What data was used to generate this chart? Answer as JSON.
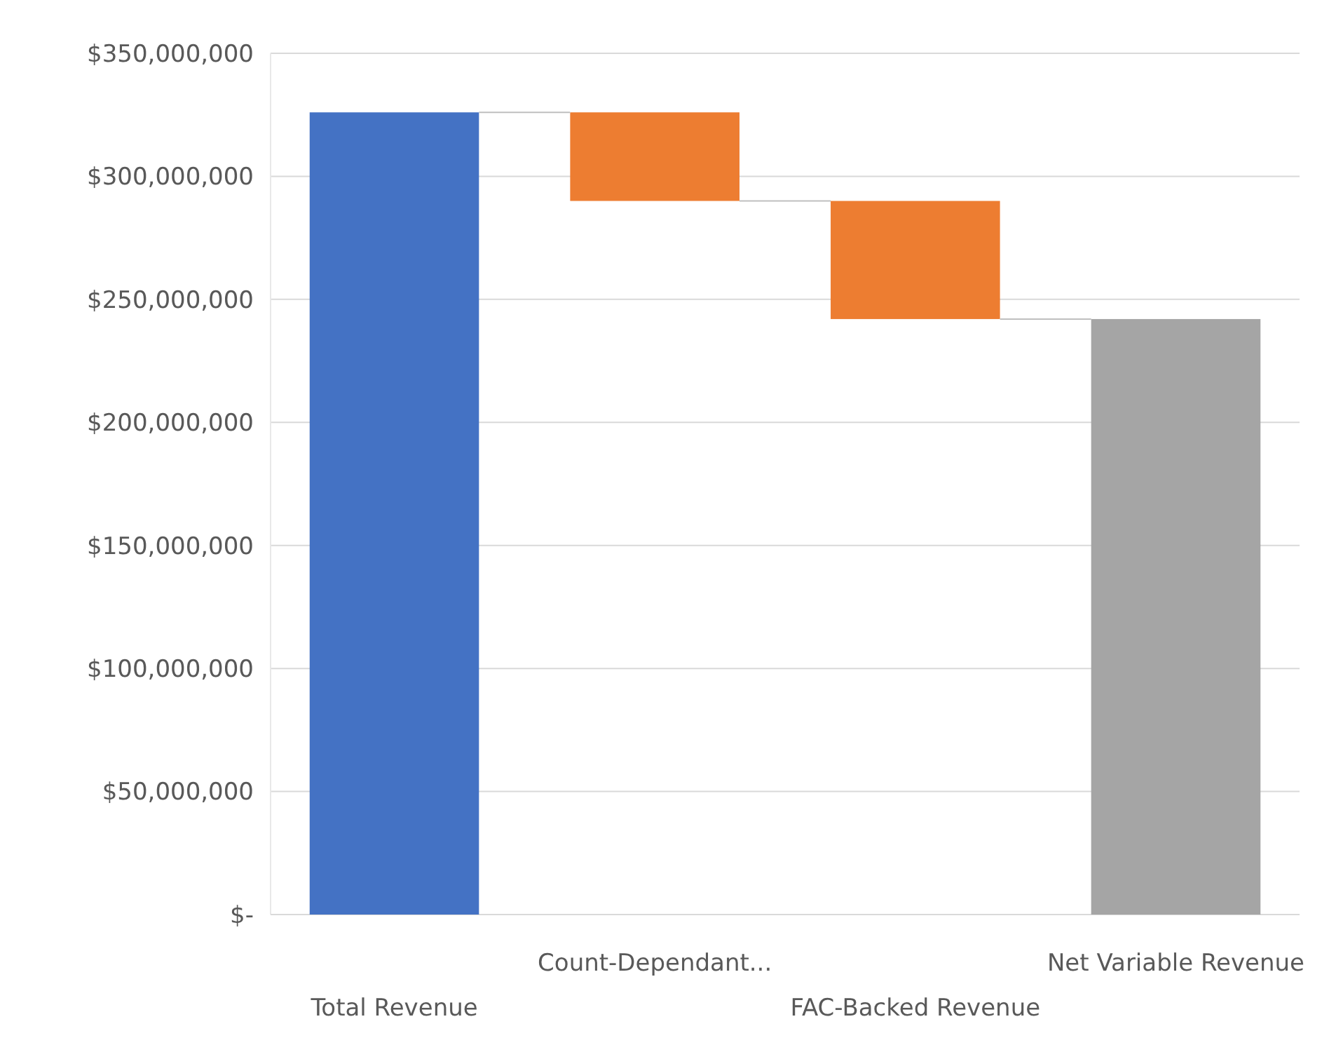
{
  "chart_data": {
    "type": "bar",
    "categories": [
      "Total Revenue",
      "Count-Dependant...",
      "FAC-Backed Revenue",
      "Net Variable Revenue"
    ],
    "values": [
      326000000,
      36000000,
      48000000,
      242000000
    ],
    "base": [
      0,
      290000000,
      242000000,
      0
    ],
    "colors": [
      "#4472c4",
      "#ed7d31",
      "#ed7d31",
      "#a5a5a5"
    ],
    "ylim": [
      0,
      350000000
    ],
    "yticks": [
      {
        "value": 0,
        "label": "$-"
      },
      {
        "value": 50000000,
        "label": "$50,000,000"
      },
      {
        "value": 100000000,
        "label": "$100,000,000"
      },
      {
        "value": 150000000,
        "label": "$150,000,000"
      },
      {
        "value": 200000000,
        "label": "$200,000,000"
      },
      {
        "value": 250000000,
        "label": "$250,000,000"
      },
      {
        "value": 300000000,
        "label": "$300,000,000"
      },
      {
        "value": 350000000,
        "label": "$350,000,000"
      }
    ],
    "grid": "y"
  }
}
